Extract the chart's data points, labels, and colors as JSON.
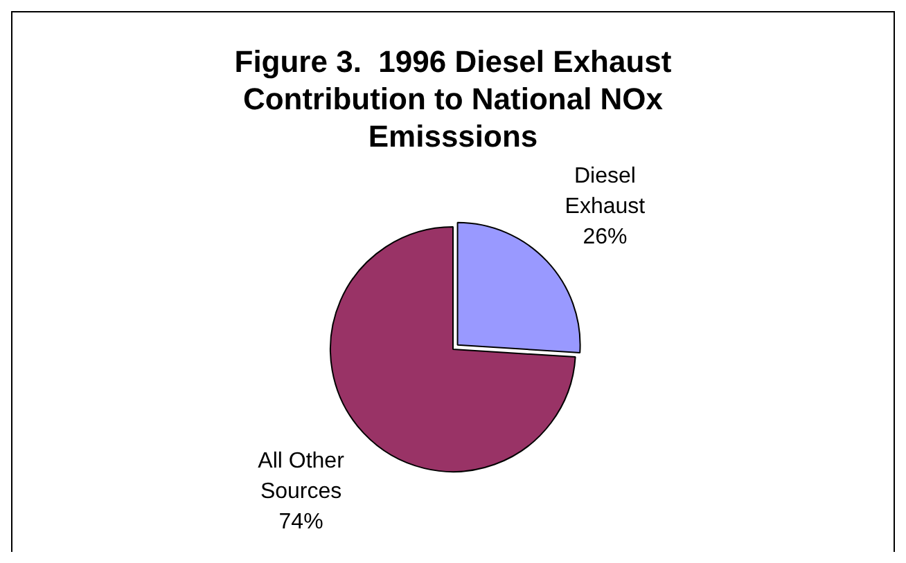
{
  "chart_data": {
    "type": "pie",
    "title": "Figure 3.  1996 Diesel Exhaust Contribution to National NOx Emisssions",
    "categories": [
      "Diesel Exhaust",
      "All Other Sources"
    ],
    "values": [
      26,
      74
    ],
    "colors": [
      "#9999ff",
      "#993366"
    ],
    "value_labels": [
      "26%",
      "74%"
    ],
    "legend": false
  }
}
